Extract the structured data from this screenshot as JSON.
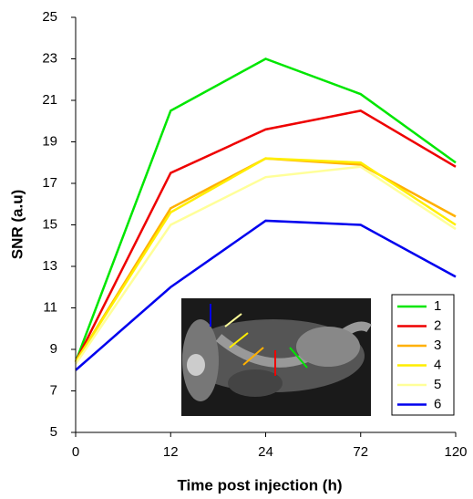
{
  "chart_data": {
    "type": "line",
    "x_label": "Time post injection (h)",
    "y_label": "SNR (a.u)",
    "categories": [
      "0",
      "12",
      "24",
      "72",
      "120"
    ],
    "ylim": [
      5,
      25
    ],
    "yticks": [
      5,
      7,
      9,
      11,
      13,
      15,
      17,
      19,
      21,
      23,
      25
    ],
    "legend": "lower-right",
    "series": [
      {
        "name": "1",
        "color": "#00e600",
        "values": [
          8.4,
          20.5,
          23.0,
          21.3,
          18.0
        ]
      },
      {
        "name": "2",
        "color": "#ee0000",
        "values": [
          8.4,
          17.5,
          19.6,
          20.5,
          17.8
        ]
      },
      {
        "name": "3",
        "color": "#ffb000",
        "values": [
          8.4,
          15.8,
          18.2,
          17.9,
          15.4
        ]
      },
      {
        "name": "4",
        "color": "#ffee00",
        "values": [
          8.4,
          15.6,
          18.2,
          18.0,
          15.0
        ]
      },
      {
        "name": "5",
        "color": "#ffff99",
        "values": [
          8.3,
          15.0,
          17.3,
          17.8,
          14.8
        ]
      },
      {
        "name": "6",
        "color": "#0000ee",
        "values": [
          8.0,
          12.0,
          15.2,
          15.0,
          12.5
        ]
      }
    ]
  }
}
